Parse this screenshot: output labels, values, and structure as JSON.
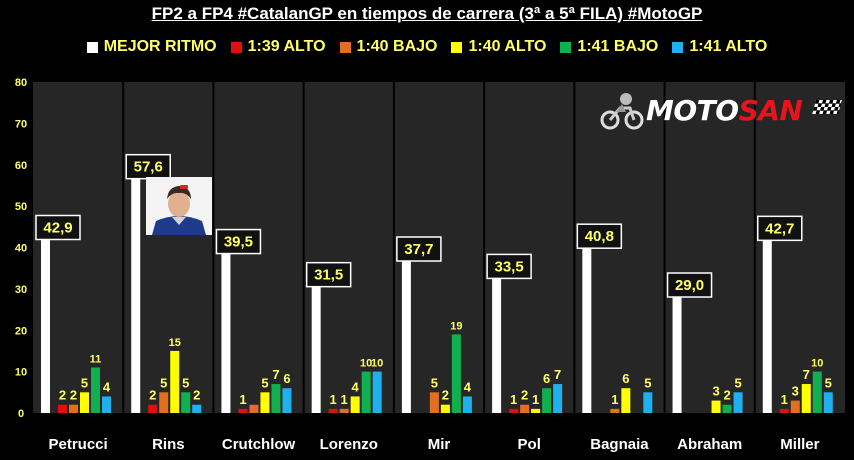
{
  "title": "FP2 a FP4 #CatalanGP en tiempos de carrera (3ª a 5ª FILA) #MotoGP",
  "colors": {
    "background": "#000000",
    "plot_area": "#262626",
    "label_box": "#111111",
    "label_text": "#ffff66",
    "series": [
      "#ffffff",
      "#e01010",
      "#e07020",
      "#ffff00",
      "#10b050",
      "#20b0f0"
    ]
  },
  "logo": {
    "part1": "MOTO",
    "part2": "SAN"
  },
  "chart_data": {
    "type": "bar",
    "title": "FP2 a FP4 #CatalanGP en tiempos de carrera (3ª a 5ª FILA) #MotoGP",
    "xlabel": "",
    "ylabel": "",
    "ylim": [
      0,
      80
    ],
    "yticks": [
      0,
      10,
      20,
      30,
      40,
      50,
      60,
      70,
      80
    ],
    "grid": false,
    "legend_position": "top",
    "categories": [
      "Petrucci",
      "Rins",
      "Crutchlow",
      "Lorenzo",
      "Mir",
      "Pol",
      "Bagnaia",
      "Abraham",
      "Miller"
    ],
    "series": [
      {
        "name": "MEJOR RITMO",
        "values": [
          42.9,
          57.6,
          39.5,
          31.5,
          37.7,
          33.5,
          40.8,
          29.0,
          42.7
        ],
        "labels": [
          "42,9",
          "57,6",
          "39,5",
          "31,5",
          "37,7",
          "33,5",
          "40,8",
          "29,0",
          "42,7"
        ]
      },
      {
        "name": "1:39 ALTO",
        "values": [
          2,
          2,
          1,
          1,
          0,
          1,
          0,
          0,
          1
        ],
        "labels": [
          "2",
          "2",
          "1",
          "1",
          "",
          "1",
          "",
          "",
          "1"
        ]
      },
      {
        "name": "1:40 BAJO",
        "values": [
          2,
          5,
          2,
          1,
          5,
          2,
          1,
          0,
          3
        ],
        "labels": [
          "2",
          "5",
          "",
          "1",
          "5",
          "2",
          "1",
          "",
          "3"
        ]
      },
      {
        "name": "1:40 ALTO",
        "values": [
          5,
          15,
          5,
          4,
          2,
          1,
          6,
          3,
          7
        ],
        "labels": [
          "5",
          "15",
          "5",
          "4",
          "2",
          "1",
          "6",
          "3",
          "7"
        ]
      },
      {
        "name": "1:41 BAJO",
        "values": [
          11,
          5,
          7,
          10,
          19,
          6,
          0,
          2,
          10
        ],
        "labels": [
          "11",
          "5",
          "7",
          "10",
          "19",
          "6",
          "",
          "2",
          "10"
        ]
      },
      {
        "name": "1:41 ALTO",
        "values": [
          4,
          2,
          6,
          10,
          4,
          7,
          5,
          5,
          5
        ],
        "labels": [
          "4",
          "2",
          "6",
          "10",
          "4",
          "7",
          "5",
          "5",
          "5"
        ]
      }
    ]
  }
}
